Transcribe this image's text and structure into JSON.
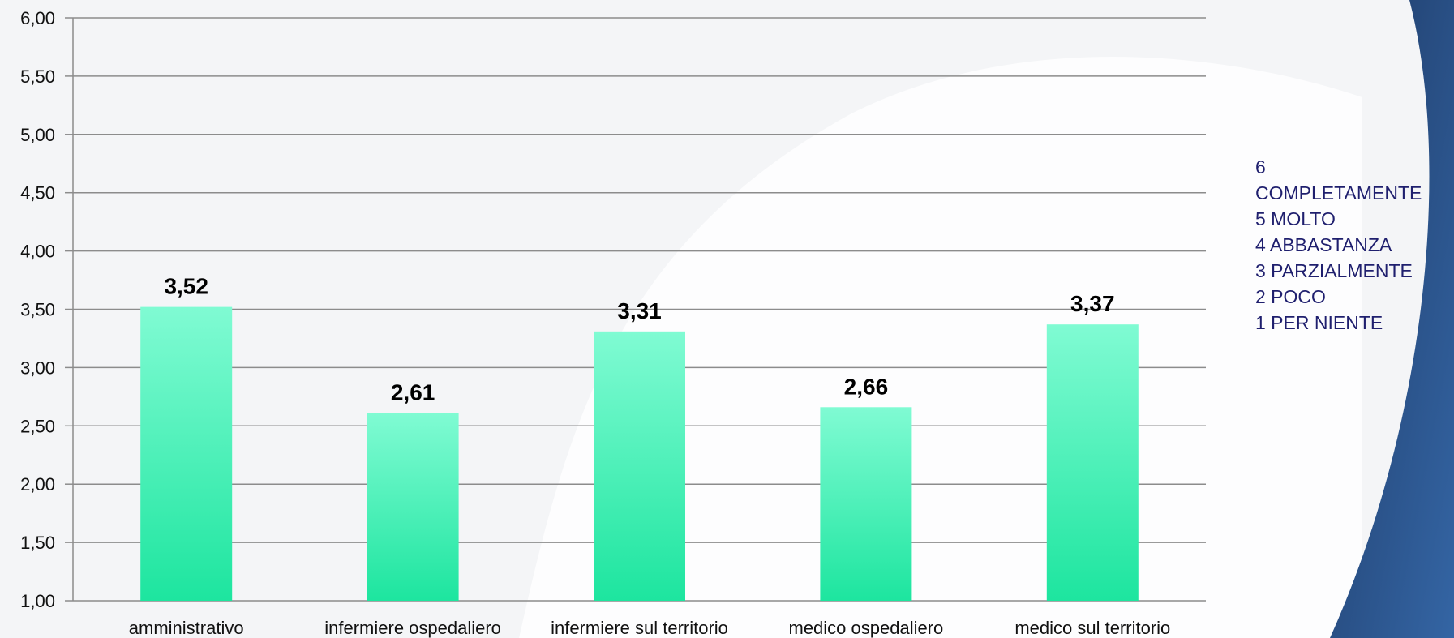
{
  "chart_data": {
    "type": "bar",
    "categories": [
      "amministrativo",
      "infermiere ospedaliero",
      "infermiere sul territorio",
      "medico ospedaliero",
      "medico sul territorio"
    ],
    "values": [
      3.52,
      2.61,
      3.31,
      2.66,
      3.37
    ],
    "data_labels": [
      "3,52",
      "2,61",
      "3,31",
      "2,66",
      "3,37"
    ],
    "ylim": [
      1.0,
      6.0
    ],
    "yticks": [
      1.0,
      1.5,
      2.0,
      2.5,
      3.0,
      3.5,
      4.0,
      4.5,
      5.0,
      5.5,
      6.0
    ],
    "ytick_labels": [
      "1,00",
      "1,50",
      "2,00",
      "2,50",
      "3,00",
      "3,50",
      "4,00",
      "4,50",
      "5,00",
      "5,50",
      "6,00"
    ],
    "grid": true,
    "legend_placement": "right",
    "colors": {
      "bar_top": "#80fbd3",
      "bar_bottom": "#1de59f",
      "grid": "#8c8c8c",
      "legend_text": "#1f1f6e",
      "accent_blue": "#2b5a94"
    }
  },
  "legend": {
    "items": [
      "6",
      "COMPLETAMENTE",
      "5 MOLTO",
      "4 ABBASTANZA",
      "3 PARZIALMENTE",
      "2 POCO",
      "1 PER NIENTE"
    ]
  }
}
